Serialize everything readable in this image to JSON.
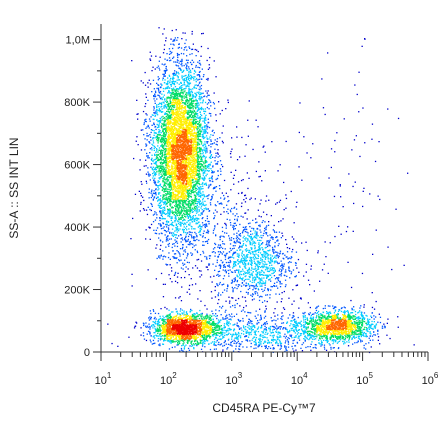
{
  "chart_data": {
    "type": "scatter",
    "subtype": "flow-cytometry density dot plot",
    "xlabel": "CD45RA PE-Cy™7",
    "ylabel": "SS-A :: SS INT LIN",
    "x_scale": "log",
    "y_scale": "linear",
    "xlim": [
      10,
      1000000
    ],
    "ylim": [
      0,
      1050000
    ],
    "x_ticks": [
      {
        "value": 10,
        "base": "10",
        "exp": "1"
      },
      {
        "value": 100,
        "base": "10",
        "exp": "2"
      },
      {
        "value": 1000,
        "base": "10",
        "exp": "3"
      },
      {
        "value": 10000,
        "base": "10",
        "exp": "4"
      },
      {
        "value": 100000,
        "base": "10",
        "exp": "5"
      },
      {
        "value": 1000000,
        "base": "10",
        "exp": "6"
      }
    ],
    "y_ticks": [
      {
        "value": 0,
        "label": "0"
      },
      {
        "value": 200000,
        "label": "200K"
      },
      {
        "value": 400000,
        "label": "400K"
      },
      {
        "value": 600000,
        "label": "600K"
      },
      {
        "value": 800000,
        "label": "800K"
      },
      {
        "value": 1000000,
        "label": "1,0M"
      }
    ],
    "grid": false,
    "legend": "none",
    "color_scale": [
      "#0000cc",
      "#0055ff",
      "#00ccff",
      "#00dd66",
      "#ffee00",
      "#ff6600",
      "#ee0000"
    ],
    "populations": [
      {
        "x_center": 160,
        "x_spread_decades": 0.22,
        "y_center": 640000,
        "y_spread": 140000,
        "count": 5200,
        "density_weight": 1.0
      },
      {
        "x_center": 190,
        "x_spread_decades": 0.25,
        "y_center": 78000,
        "y_spread": 22000,
        "count": 1700,
        "density_weight": 0.9
      },
      {
        "x_center": 40000,
        "x_spread_decades": 0.28,
        "y_center": 85000,
        "y_spread": 25000,
        "count": 1300,
        "density_weight": 0.85
      },
      {
        "x_center": 2200,
        "x_spread_decades": 0.3,
        "y_center": 285000,
        "y_spread": 65000,
        "count": 900,
        "density_weight": 0.45
      },
      {
        "x_center": 2000,
        "x_spread_decades": 0.75,
        "y_center": 60000,
        "y_spread": 35000,
        "count": 900,
        "density_weight": 0.3
      },
      {
        "x_center": 700,
        "x_spread_decades": 0.5,
        "y_center": 390000,
        "y_spread": 150000,
        "count": 500,
        "density_weight": 0.15
      },
      {
        "x_center": 60000,
        "x_spread_decades": 0.35,
        "y_center": 450000,
        "y_spread": 250000,
        "count": 90,
        "density_weight": 0.05
      }
    ]
  }
}
